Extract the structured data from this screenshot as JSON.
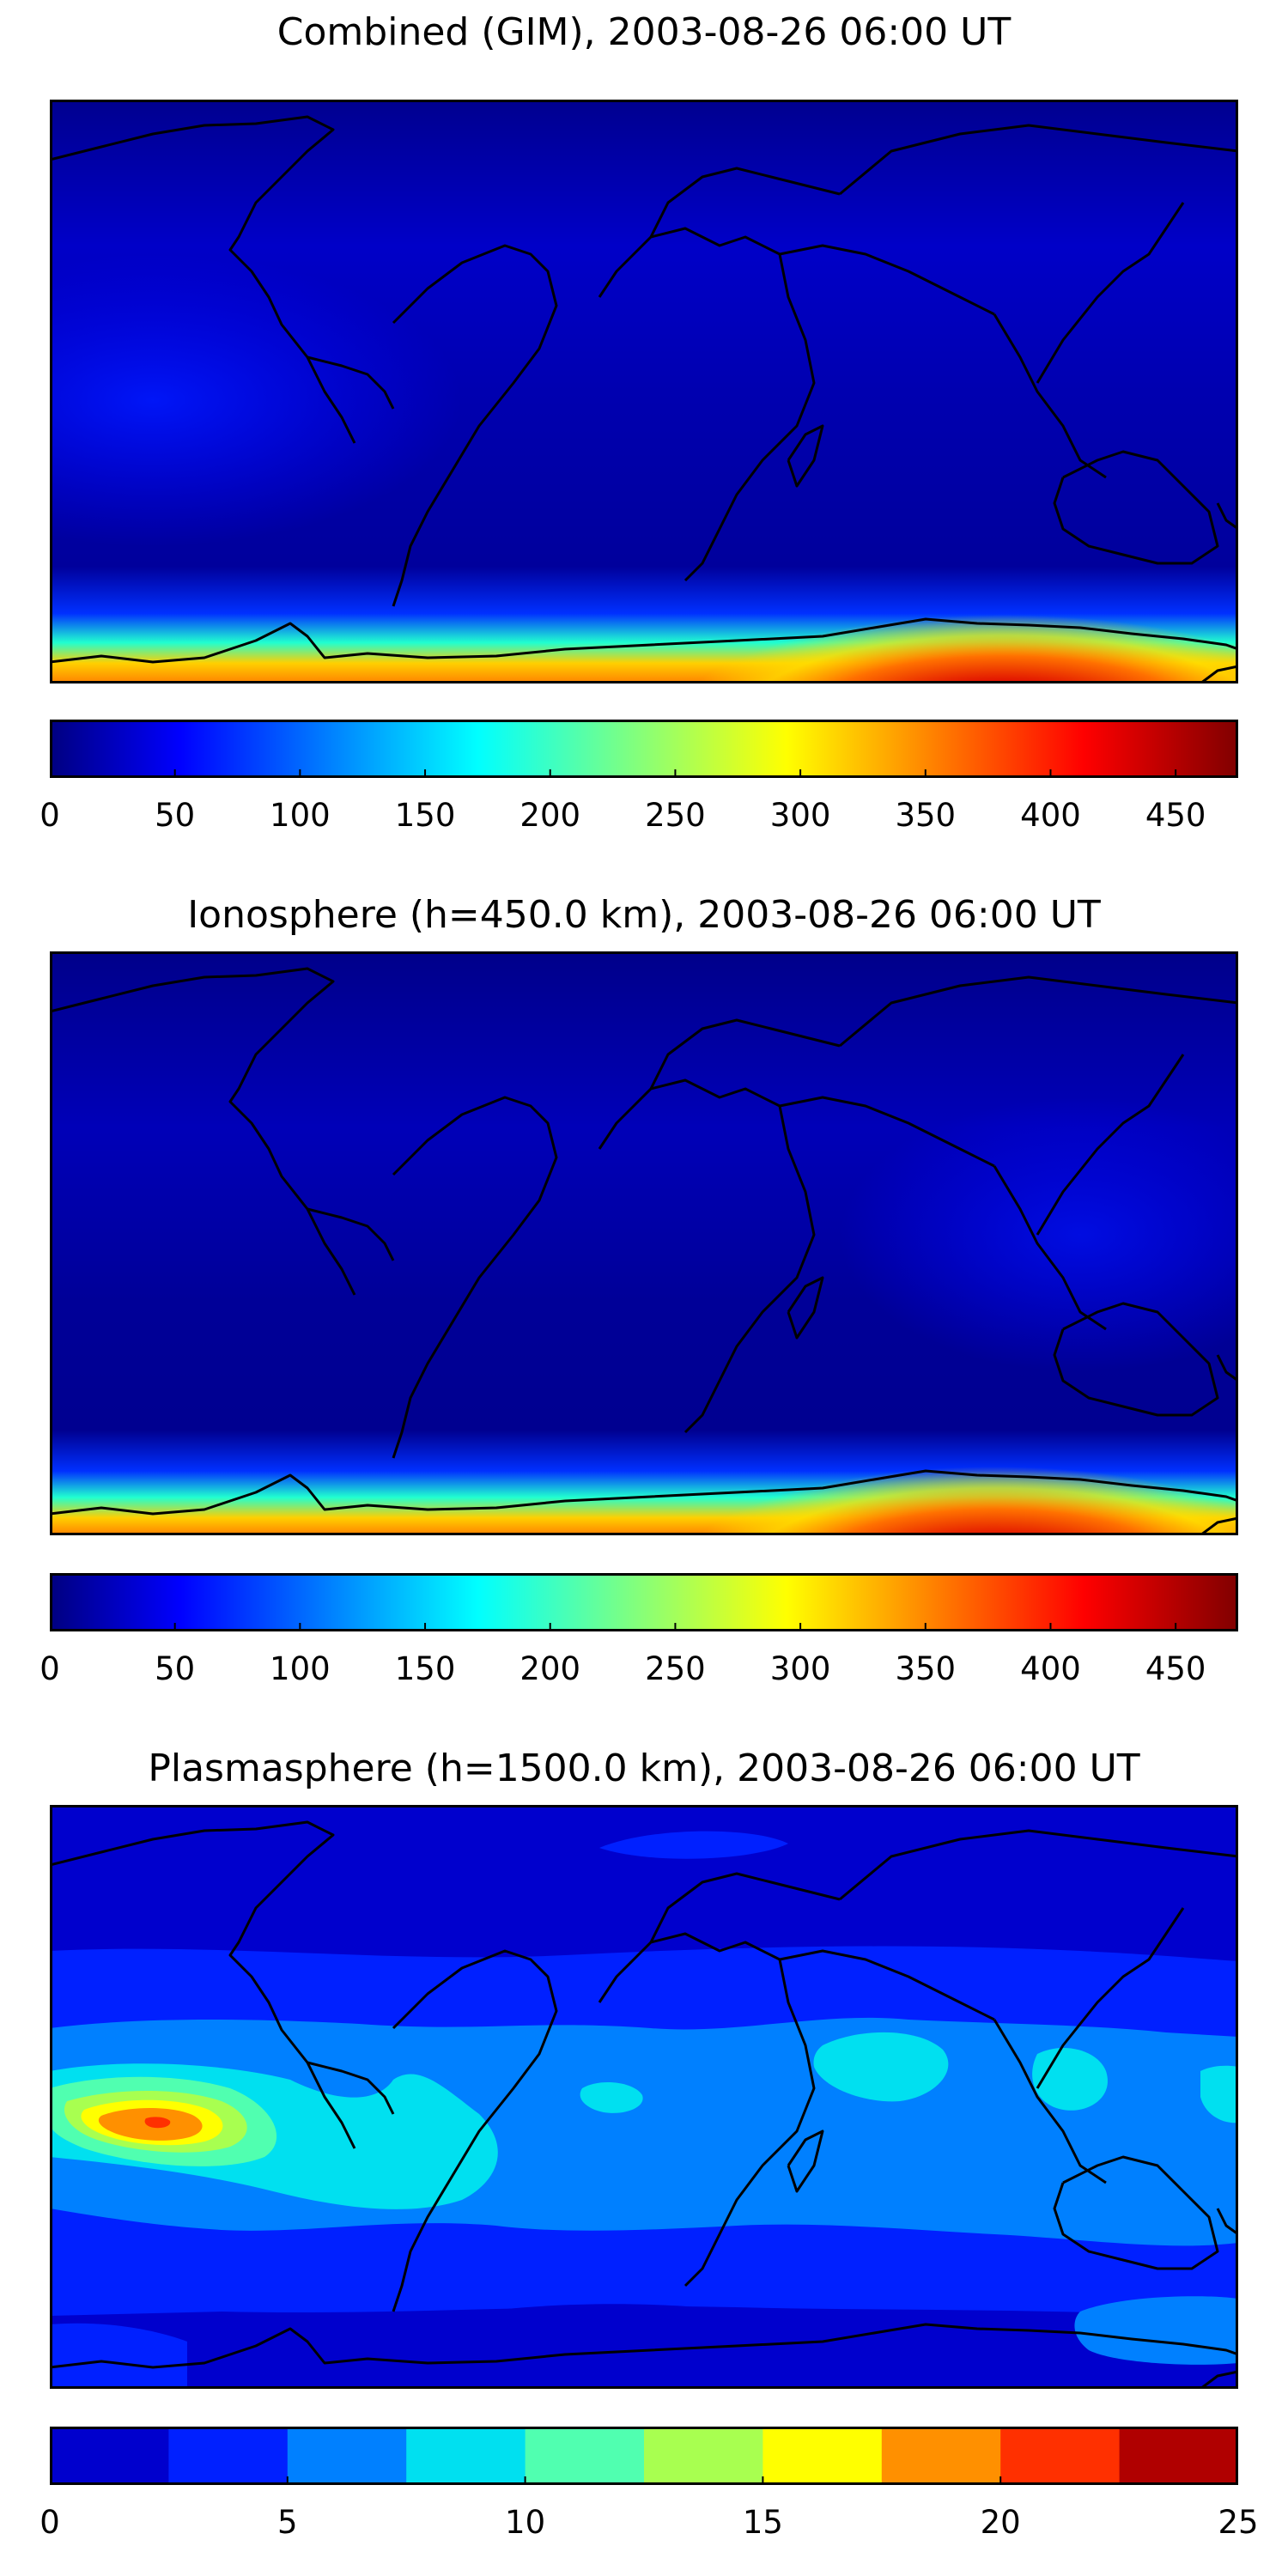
{
  "figure": {
    "panels": [
      {
        "title": "Combined (GIM), 2003-08-26 06:00 UT",
        "field": "combined",
        "colorbar": {
          "style": "continuous",
          "colormap": "jet",
          "range": [
            0,
            475
          ],
          "ticks": [
            "0",
            "50",
            "100",
            "150",
            "200",
            "250",
            "300",
            "350",
            "400",
            "450"
          ],
          "tick_values": [
            0,
            50,
            100,
            150,
            200,
            250,
            300,
            350,
            400,
            450
          ]
        }
      },
      {
        "title": "Ionosphere  (h=450.0 km), 2003-08-26 06:00 UT",
        "field": "ionosphere",
        "colorbar": {
          "style": "continuous",
          "colormap": "jet",
          "range": [
            0,
            475
          ],
          "ticks": [
            "0",
            "50",
            "100",
            "150",
            "200",
            "250",
            "300",
            "350",
            "400",
            "450"
          ],
          "tick_values": [
            0,
            50,
            100,
            150,
            200,
            250,
            300,
            350,
            400,
            450
          ]
        }
      },
      {
        "title": "Plasmasphere (h=1500.0 km), 2003-08-26 06:00 UT",
        "field": "plasmasphere",
        "colorbar": {
          "style": "discrete",
          "colormap": "jet",
          "range": [
            0,
            25
          ],
          "levels": [
            0,
            2.5,
            5,
            7.5,
            10,
            12.5,
            15,
            17.5,
            20,
            22.5,
            25
          ],
          "ticks": [
            "0",
            "5",
            "10",
            "15",
            "20",
            "25"
          ],
          "tick_values": [
            0,
            5,
            10,
            15,
            20,
            25
          ]
        }
      }
    ]
  },
  "colors": {
    "jet_stops": [
      "#000080",
      "#0000ff",
      "#00ffff",
      "#ffff00",
      "#ff0000",
      "#800000"
    ],
    "coastline": "#000000",
    "frame": "#000000"
  }
}
